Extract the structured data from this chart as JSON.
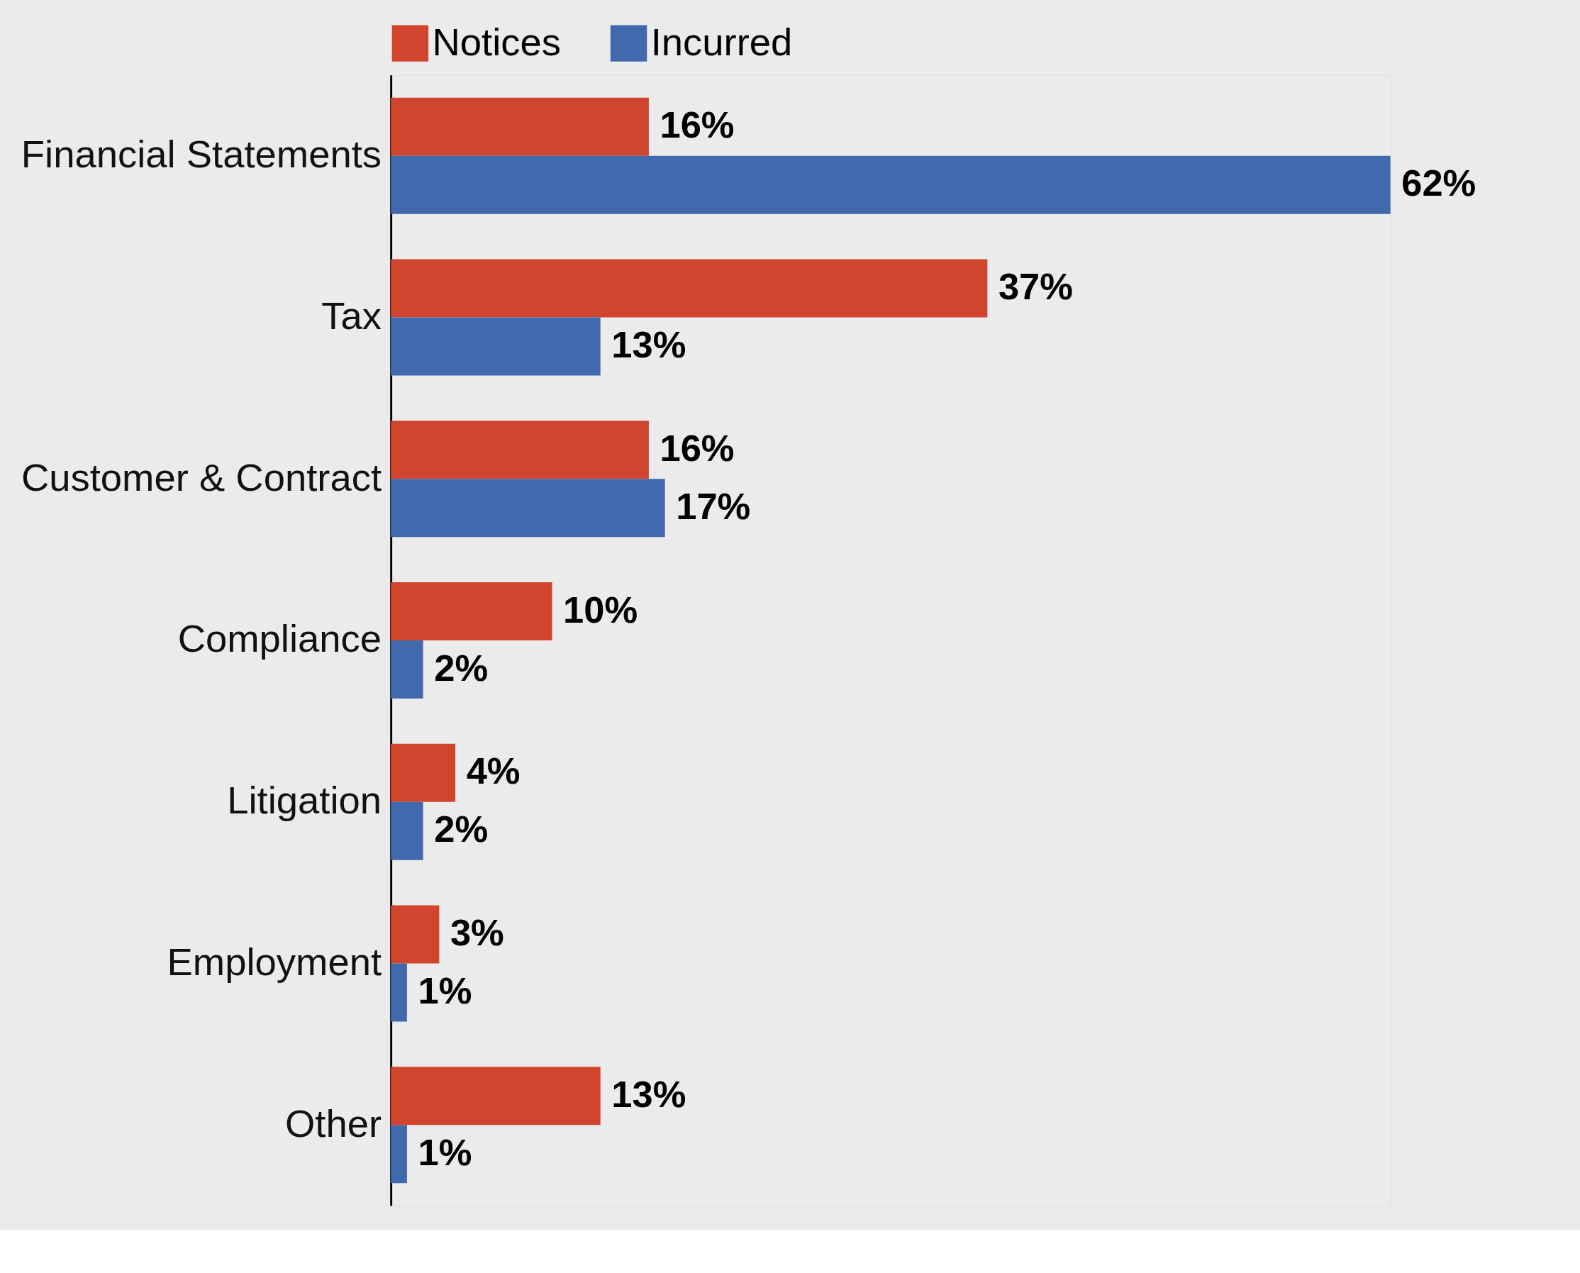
{
  "chart_data": {
    "type": "bar",
    "orientation": "horizontal",
    "categories": [
      "Financial Statements",
      "Tax",
      "Customer & Contract",
      "Compliance",
      "Litigation",
      "Employment",
      "Other"
    ],
    "series": [
      {
        "name": "Notices",
        "color": "#d1452e",
        "values": [
          16,
          37,
          16,
          10,
          4,
          3,
          13
        ],
        "value_labels": [
          "16%",
          "37%",
          "16%",
          "10%",
          "4%",
          "3%",
          "13%"
        ]
      },
      {
        "name": "Incurred",
        "color": "#4169ad",
        "values": [
          62,
          13,
          17,
          2,
          2,
          1,
          1
        ],
        "value_labels": [
          "62%",
          "13%",
          "17%",
          "2%",
          "2%",
          "1%",
          "1%"
        ]
      }
    ],
    "legend": "top",
    "tick_labels": "y",
    "grid": false
  }
}
